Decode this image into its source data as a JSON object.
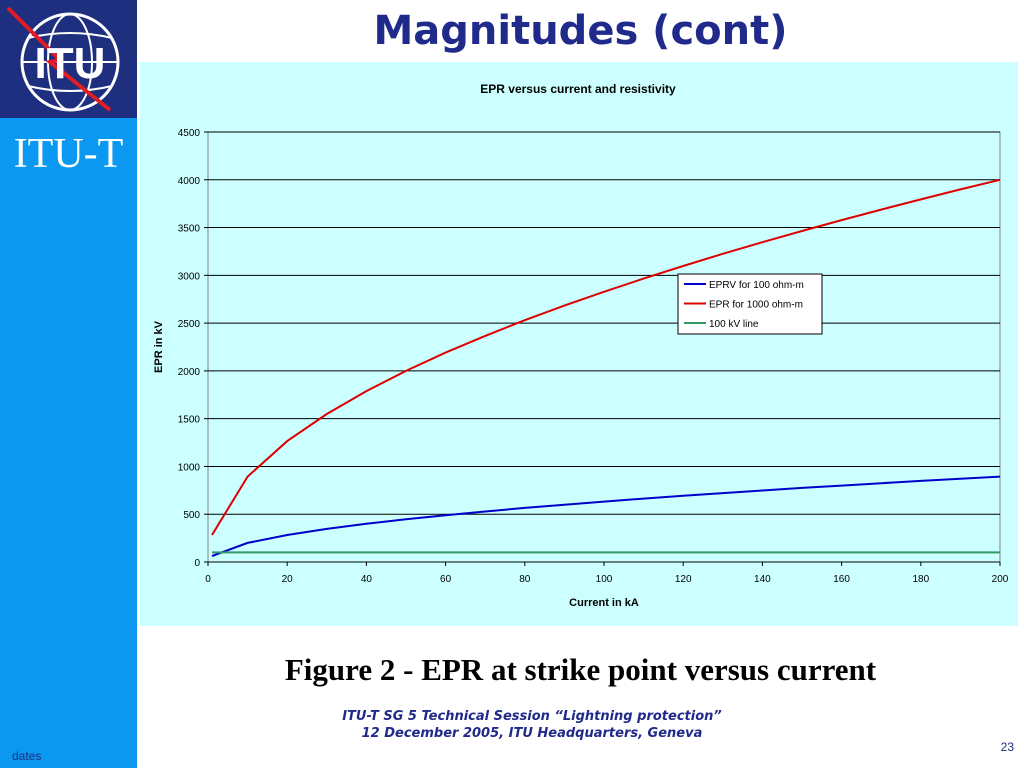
{
  "slide": {
    "title": "Magnitudes (cont)",
    "sidebar_label": "ITU-T",
    "logo_text": "ITU",
    "dates": "dates",
    "caption": "Figure 2 - EPR at strike point versus current",
    "footer_line1": "ITU-T SG 5 Technical Session “Lightning protection”",
    "footer_line2": "12 December 2005, ITU Headquarters, Geneva",
    "page_number": "23"
  },
  "colors": {
    "sidebar": "#0a98f0",
    "logo_bg": "#1d2f7e",
    "title": "#1f2a8a",
    "chart_bg": "#ccffff"
  },
  "chart_data": {
    "type": "line",
    "title": "EPR versus current and resistivity",
    "xlabel": "Current in kA",
    "ylabel": "EPR in kV",
    "xlim": [
      0,
      200
    ],
    "ylim": [
      0,
      4500
    ],
    "xticks": [
      0,
      20,
      40,
      60,
      80,
      100,
      120,
      140,
      160,
      180,
      200
    ],
    "yticks": [
      0,
      500,
      1000,
      1500,
      2000,
      2500,
      3000,
      3500,
      4000,
      4500
    ],
    "grid": "horizontal",
    "legend_position": "right",
    "series": [
      {
        "name": "EPRV for 100 ohm-m",
        "color": "#0000cc",
        "x": [
          1,
          10,
          20,
          30,
          40,
          50,
          60,
          70,
          80,
          90,
          100,
          110,
          120,
          130,
          140,
          150,
          160,
          170,
          180,
          190,
          200
        ],
        "y": [
          63,
          200,
          283,
          346,
          400,
          447,
          490,
          529,
          566,
          600,
          632,
          663,
          693,
          721,
          748,
          775,
          800,
          825,
          849,
          872,
          894
        ]
      },
      {
        "name": "EPR for 1000 ohm-m",
        "color": "#dd0000",
        "x": [
          1,
          10,
          20,
          30,
          40,
          50,
          60,
          70,
          80,
          90,
          100,
          110,
          120,
          130,
          140,
          150,
          160,
          170,
          180,
          190,
          200
        ],
        "y": [
          283,
          894,
          1265,
          1549,
          1789,
          2000,
          2191,
          2366,
          2530,
          2683,
          2828,
          2966,
          3098,
          3225,
          3347,
          3464,
          3578,
          3688,
          3795,
          3899,
          4000
        ]
      },
      {
        "name": "100 kV line",
        "color": "#339966",
        "x": [
          1,
          200
        ],
        "y": [
          100,
          100
        ]
      }
    ]
  }
}
